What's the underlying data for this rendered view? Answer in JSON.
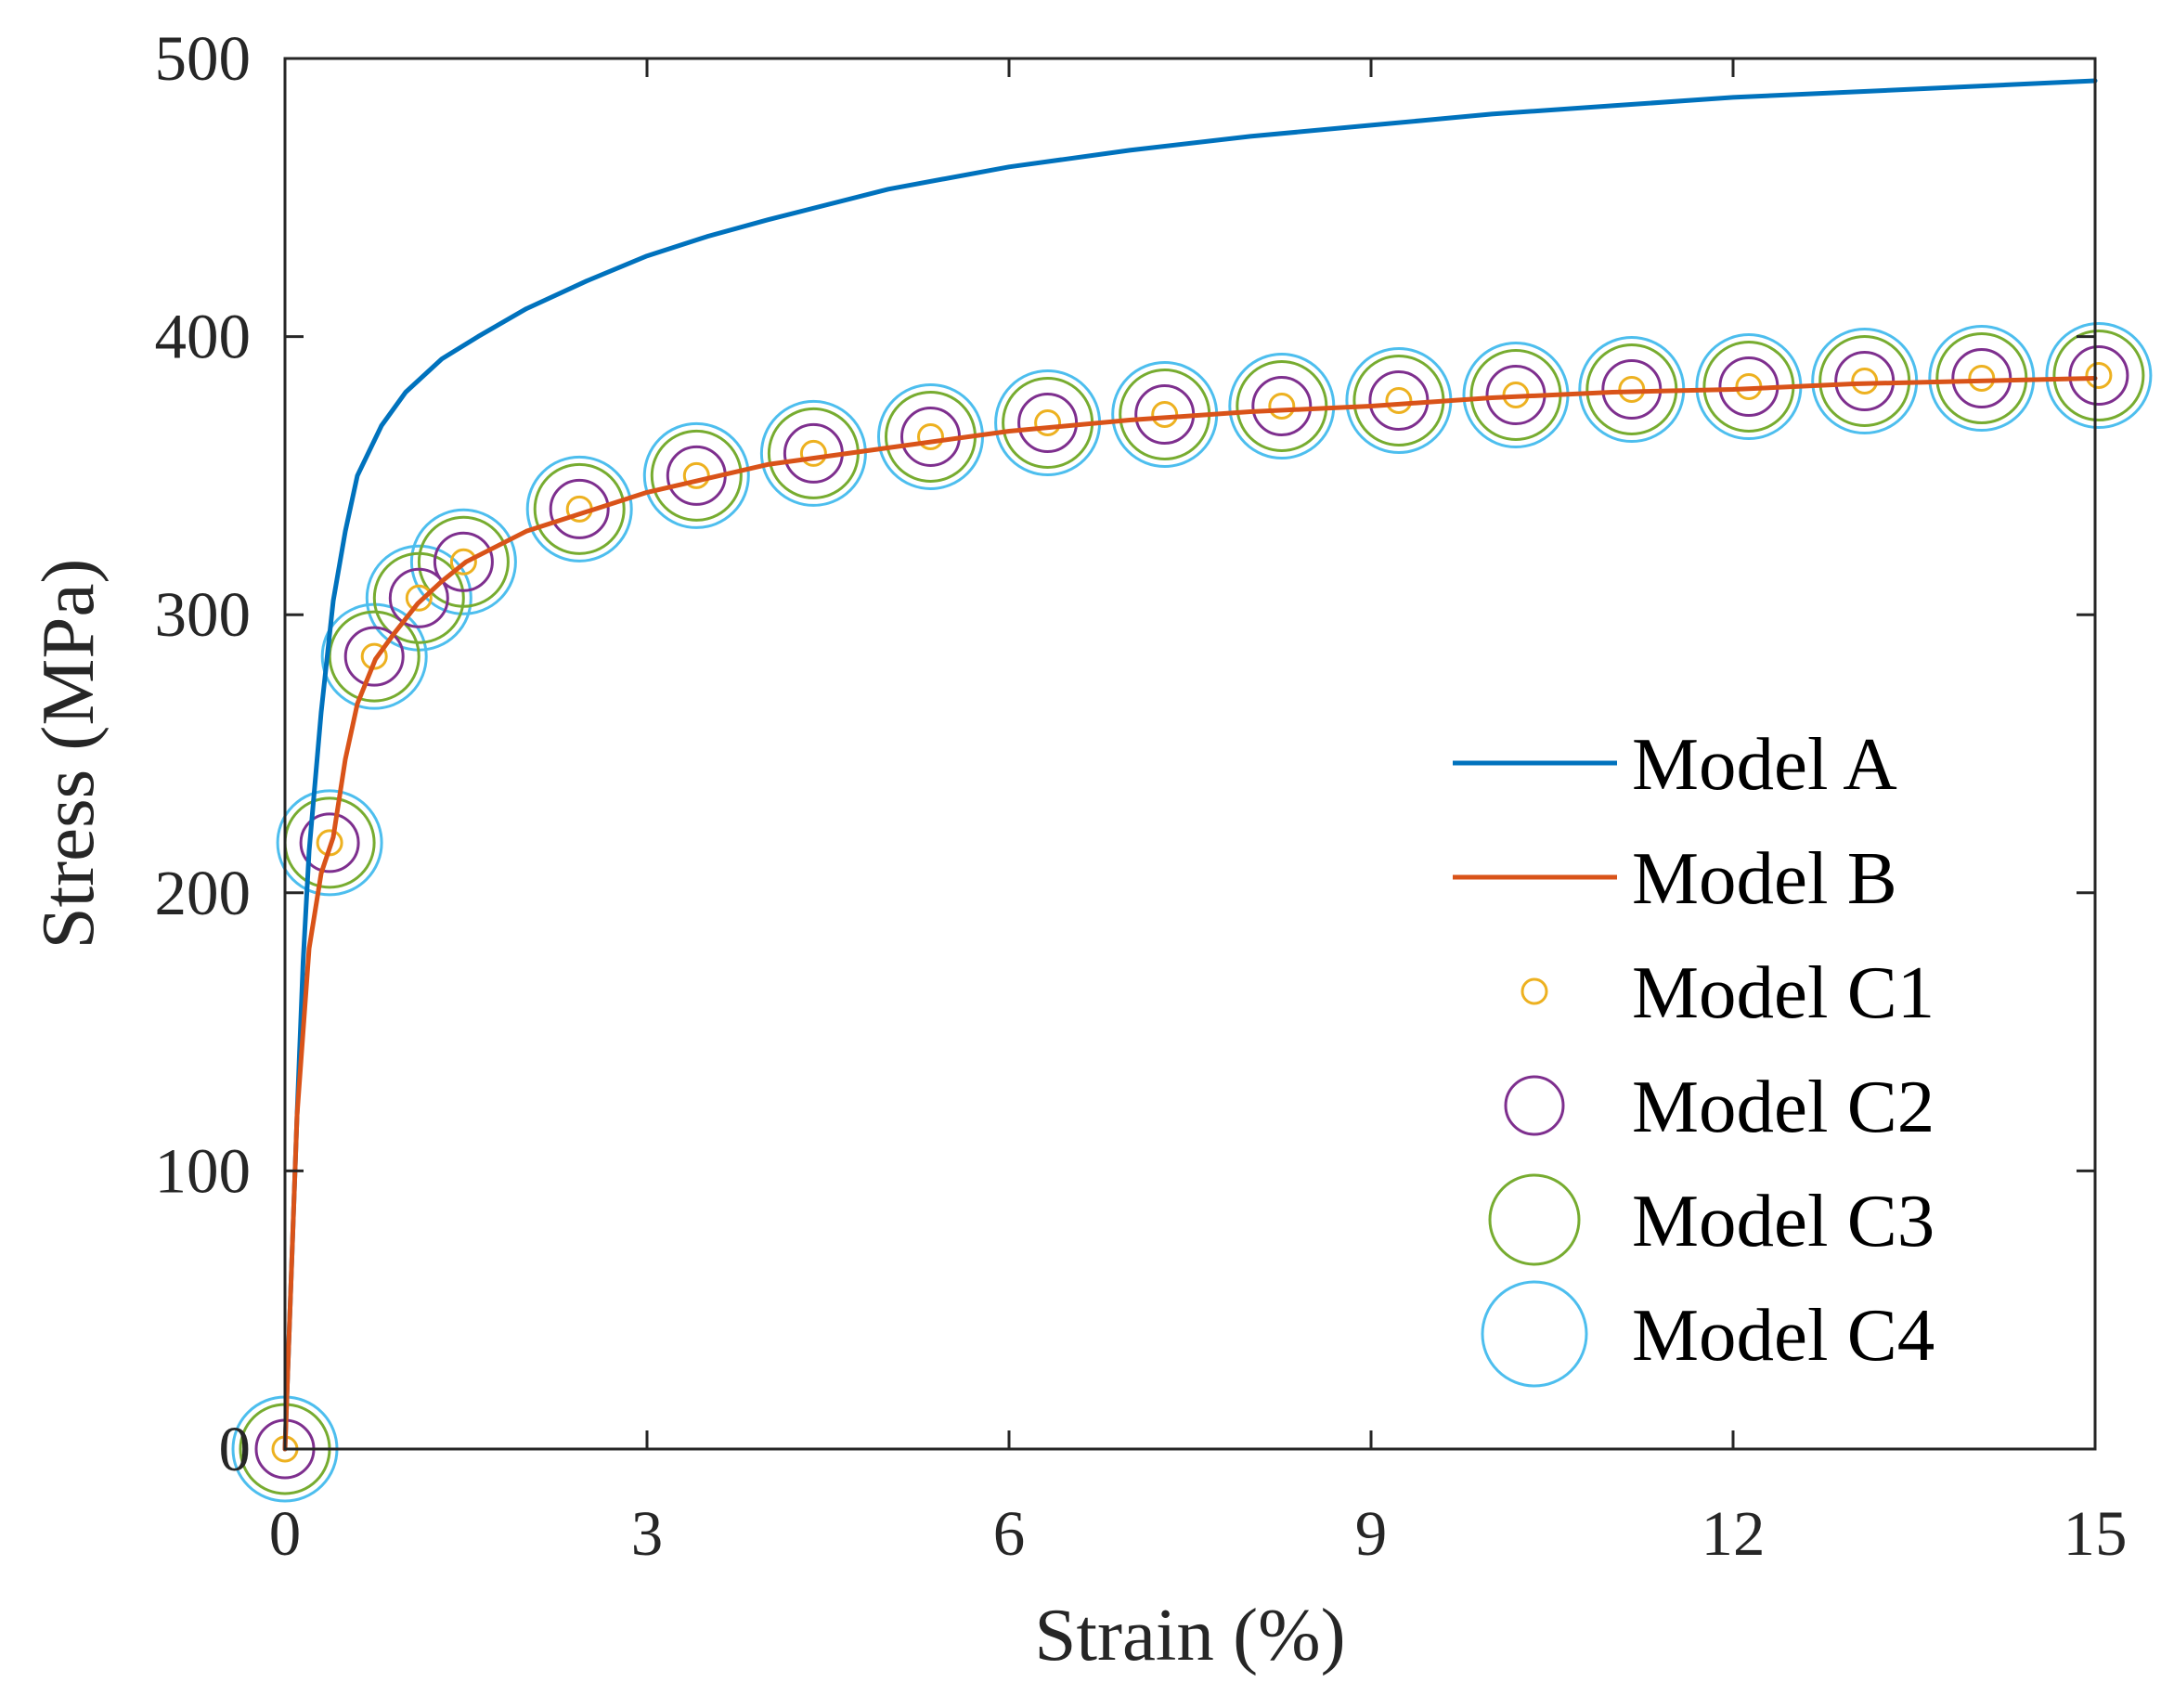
{
  "chart_data": {
    "type": "line",
    "title": "",
    "xlabel": "Strain (%)",
    "ylabel": "Stress (MPa)",
    "xlim": [
      0,
      15
    ],
    "ylim": [
      0,
      500
    ],
    "xticks": [
      0,
      3,
      6,
      9,
      12,
      15
    ],
    "yticks": [
      0,
      100,
      200,
      300,
      400,
      500
    ],
    "grid": false,
    "legend_position": "bottom-right",
    "series": [
      {
        "name": "Model A",
        "style": "line",
        "color": "#0072BD",
        "x": [
          0,
          0.05,
          0.1,
          0.15,
          0.2,
          0.3,
          0.4,
          0.5,
          0.6,
          0.8,
          1.0,
          1.3,
          1.6,
          2.0,
          2.5,
          3.0,
          3.5,
          4.0,
          5.0,
          6.0,
          7.0,
          8.0,
          9.0,
          10.0,
          11.0,
          12.0,
          13.0,
          14.0,
          15.0
        ],
        "y": [
          0,
          60,
          120,
          175,
          215,
          265,
          305,
          330,
          350,
          368,
          380,
          392,
          400,
          410,
          420,
          429,
          436,
          442,
          453,
          461,
          467,
          472,
          476,
          480,
          483,
          486,
          488,
          490,
          492
        ]
      },
      {
        "name": "Model B",
        "style": "line",
        "color": "#D95319",
        "x": [
          0,
          0.05,
          0.1,
          0.2,
          0.3,
          0.4,
          0.5,
          0.6,
          0.75,
          0.9,
          1.1,
          1.3,
          1.5,
          2.0,
          2.5,
          3.0,
          3.5,
          4.0,
          4.5,
          5.0,
          6.0,
          7.0,
          8.0,
          9.0,
          10.0,
          11.0,
          12.0,
          13.0,
          14.0,
          15.0
        ],
        "y": [
          0,
          60,
          120,
          180,
          207,
          220,
          248,
          268,
          284,
          293,
          304,
          312,
          319,
          330,
          337,
          344,
          349,
          354,
          357,
          360,
          366,
          370,
          373,
          375,
          378,
          380,
          381,
          383,
          384,
          385
        ]
      },
      {
        "name": "Model C1",
        "style": "marker",
        "color": "#EDB120",
        "x": [
          0,
          0.37,
          0.74,
          1.11,
          1.48,
          2.44,
          3.41,
          4.38,
          5.35,
          6.32,
          7.29,
          8.26,
          9.23,
          10.2,
          11.16,
          12.13,
          13.09,
          14.06,
          15.03
        ],
        "y": [
          0,
          218,
          285,
          306,
          319,
          338,
          350,
          358,
          364,
          369,
          372,
          375,
          377,
          379,
          381,
          382,
          384,
          385,
          386
        ]
      },
      {
        "name": "Model C2",
        "style": "marker",
        "color": "#7E2F8E",
        "x": [
          0,
          0.37,
          0.74,
          1.11,
          1.48,
          2.44,
          3.41,
          4.38,
          5.35,
          6.32,
          7.29,
          8.26,
          9.23,
          10.2,
          11.16,
          12.13,
          13.09,
          14.06,
          15.03
        ],
        "y": [
          0,
          218,
          285,
          306,
          319,
          338,
          350,
          358,
          364,
          369,
          372,
          375,
          377,
          379,
          381,
          382,
          384,
          385,
          386
        ]
      },
      {
        "name": "Model C3",
        "style": "marker",
        "color": "#77AC30",
        "x": [
          0,
          0.37,
          0.74,
          1.11,
          1.48,
          2.44,
          3.41,
          4.38,
          5.35,
          6.32,
          7.29,
          8.26,
          9.23,
          10.2,
          11.16,
          12.13,
          13.09,
          14.06,
          15.03
        ],
        "y": [
          0,
          218,
          285,
          306,
          319,
          338,
          350,
          358,
          364,
          369,
          372,
          375,
          377,
          379,
          381,
          382,
          384,
          385,
          386
        ]
      },
      {
        "name": "Model C4",
        "style": "marker",
        "color": "#4DBEEE",
        "x": [
          0,
          0.37,
          0.74,
          1.11,
          1.48,
          2.44,
          3.41,
          4.38,
          5.35,
          6.32,
          7.29,
          8.26,
          9.23,
          10.2,
          11.16,
          12.13,
          13.09,
          14.06,
          15.03
        ],
        "y": [
          0,
          218,
          285,
          306,
          319,
          338,
          350,
          358,
          364,
          369,
          372,
          375,
          377,
          379,
          381,
          382,
          384,
          385,
          386
        ]
      }
    ]
  }
}
